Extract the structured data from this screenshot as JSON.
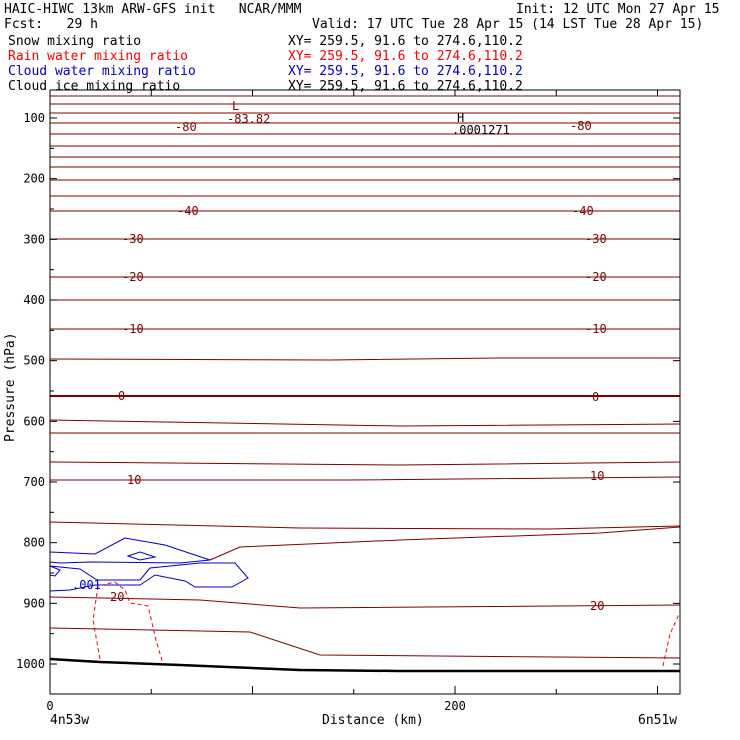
{
  "header": {
    "title_left": "HAIC-HIWC 13km ARW-GFS init   NCAR/MMM",
    "init": "Init: 12 UTC Mon 27 Apr 15",
    "fcst": "Fcst:   29 h",
    "valid": "Valid: 17 UTC Tue 28 Apr 15 (14 LST Tue 28 Apr 15)"
  },
  "fields": [
    {
      "name": "Snow mixing ratio",
      "xy": "XY= 259.5, 91.6 to 274.6,110.2",
      "color": "#000000"
    },
    {
      "name": "Rain water mixing ratio",
      "xy": "XY= 259.5, 91.6 to 274.6,110.2",
      "color": "#ff0000"
    },
    {
      "name": "Cloud water mixing ratio",
      "xy": "XY= 259.5, 91.6 to 274.6,110.2",
      "color": "#0000cc"
    },
    {
      "name": "Cloud ice mixing ratio",
      "xy": "XY= 259.5, 91.6 to 274.6,110.2",
      "color": "#000000"
    }
  ],
  "chart_data": {
    "type": "contour cross-section",
    "xlabel": "Distance (km)",
    "ylabel": "Pressure (hPa)",
    "x_tick_labels": [
      "0",
      "200"
    ],
    "y_ticks": [
      100,
      200,
      300,
      400,
      500,
      600,
      700,
      800,
      900,
      1000
    ],
    "endpoint_left": "4n53w",
    "endpoint_right": "6n51w",
    "temperature_labels": [
      "-80",
      "-40",
      "-30",
      "-20",
      "-10",
      "0",
      "10",
      "20"
    ],
    "extrema": [
      {
        "symbol": "L",
        "value": "-83.82"
      },
      {
        "symbol": "H",
        "value": ".0001271"
      }
    ],
    "cloud_water_label": ".001",
    "colors": {
      "temperature": "#800000",
      "cloud_water": "#0000cc",
      "rain_water": "#ff0000",
      "terrain": "#000000"
    }
  }
}
